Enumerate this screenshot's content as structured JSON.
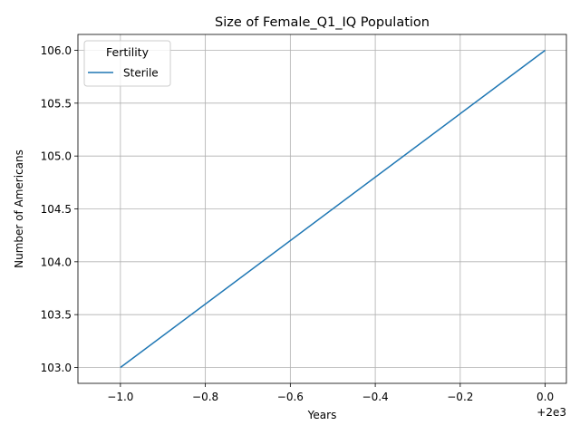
{
  "chart_data": {
    "type": "line",
    "title": "Size of Female_Q1_IQ Population",
    "xlabel": "Years",
    "ylabel": "Number of Americans",
    "x_offset_label": "+2e3",
    "xlim": [
      -1.1,
      0.05
    ],
    "ylim": [
      102.85,
      106.15
    ],
    "x_ticks": [
      {
        "value": -1.0,
        "label": "−1.0"
      },
      {
        "value": -0.8,
        "label": "−0.8"
      },
      {
        "value": -0.6,
        "label": "−0.6"
      },
      {
        "value": -0.4,
        "label": "−0.4"
      },
      {
        "value": -0.2,
        "label": "−0.2"
      },
      {
        "value": 0.0,
        "label": "0.0"
      }
    ],
    "y_ticks": [
      {
        "value": 103.0,
        "label": "103.0"
      },
      {
        "value": 103.5,
        "label": "103.5"
      },
      {
        "value": 104.0,
        "label": "104.0"
      },
      {
        "value": 104.5,
        "label": "104.5"
      },
      {
        "value": 105.0,
        "label": "105.0"
      },
      {
        "value": 105.5,
        "label": "105.5"
      },
      {
        "value": 106.0,
        "label": "106.0"
      }
    ],
    "grid": true,
    "legend": {
      "title": "Fertility",
      "placement": "top-left"
    },
    "series": [
      {
        "name": "Sterile",
        "color": "#1f77b4",
        "x": [
          -1.0,
          0.0
        ],
        "y": [
          103.0,
          106.0
        ]
      }
    ]
  }
}
